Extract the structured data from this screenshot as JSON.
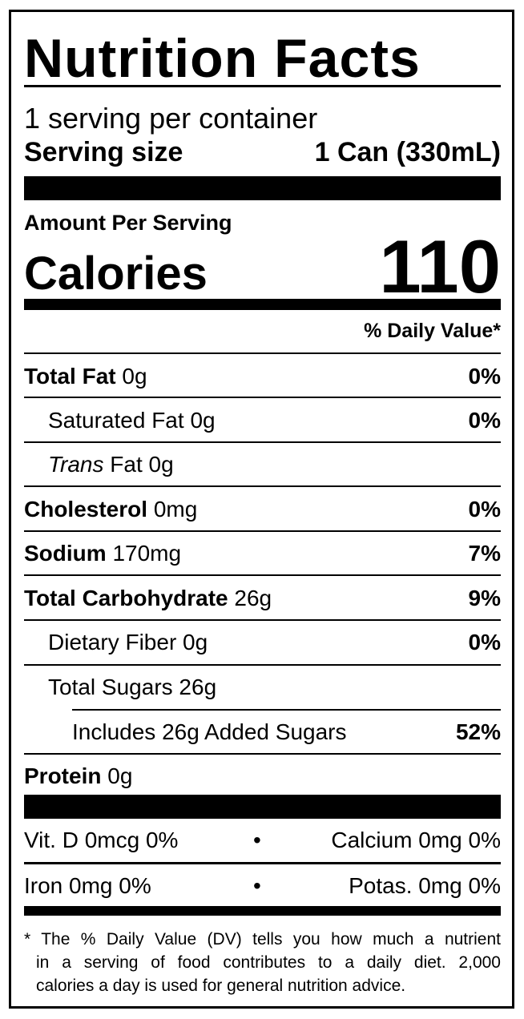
{
  "title": "Nutrition Facts",
  "servings_per_container": "1 serving per container",
  "serving_size_label": "Serving size",
  "serving_size_value": "1 Can (330mL)",
  "amount_per_serving": "Amount Per Serving",
  "calories_label": "Calories",
  "calories_value": "110",
  "daily_value_header": "% Daily Value*",
  "nutrients": [
    {
      "name": "Total Fat",
      "amount": "0g",
      "dv": "0%"
    },
    {
      "name": "Saturated Fat",
      "amount": "0g",
      "dv": "0%"
    },
    {
      "name": "Trans",
      "name_suffix": "Fat",
      "amount": "0g",
      "dv": ""
    },
    {
      "name": "Cholesterol",
      "amount": "0mg",
      "dv": "0%"
    },
    {
      "name": "Sodium",
      "amount": "170mg",
      "dv": "7%"
    },
    {
      "name": "Total Carbohydrate",
      "amount": "26g",
      "dv": "9%"
    },
    {
      "name": "Dietary Fiber",
      "amount": "0g",
      "dv": "0%"
    },
    {
      "name": "Total Sugars",
      "amount": "26g",
      "dv": ""
    },
    {
      "name": "Includes 26g Added Sugars",
      "amount": "",
      "dv": "52%"
    },
    {
      "name": "Protein",
      "amount": "0g",
      "dv": ""
    }
  ],
  "vitamins": [
    {
      "left": "Vit. D 0mcg 0%",
      "right": "Calcium 0mg 0%"
    },
    {
      "left": "Iron 0mg 0%",
      "right": "Potas. 0mg 0%"
    }
  ],
  "bullet": "•",
  "footnote": [
    "* The % Daily Value (DV) tells you how much a nutrient",
    "in a serving of food contributes to a daily diet. 2,000",
    "calories a day is used for general nutrition advice."
  ]
}
